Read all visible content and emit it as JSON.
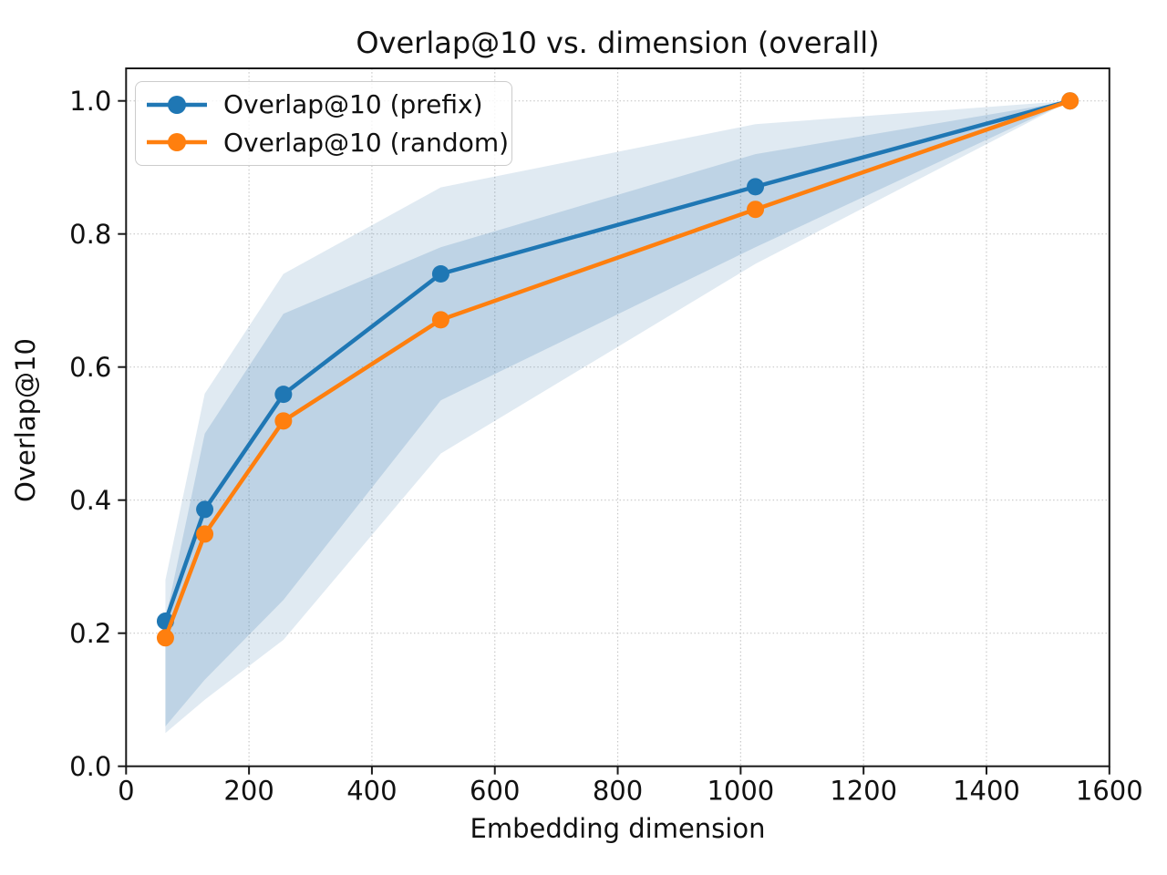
{
  "figure": {
    "background": "#ffffff"
  },
  "chart_data": {
    "type": "line",
    "title": "Overlap@10 vs. dimension (overall)",
    "xlabel": "Embedding dimension",
    "ylabel": "Overlap@10",
    "xlim": [
      0,
      1600
    ],
    "ylim": [
      0,
      1.05
    ],
    "grid": true,
    "grid_style": "dotted",
    "legend_position": "upper left",
    "x": [
      64,
      128,
      256,
      512,
      1024,
      1536
    ],
    "xticks": [
      0,
      200,
      400,
      600,
      800,
      1000,
      1200,
      1400,
      1600
    ],
    "x_tick_labels": [
      "0",
      "200",
      "400",
      "600",
      "800",
      "1000",
      "1200",
      "1400",
      "1600"
    ],
    "yticks": [
      0,
      0.2,
      0.4,
      0.6,
      0.8,
      1.0
    ],
    "y_tick_labels": [
      "0.0",
      "0.2",
      "0.4",
      "0.6",
      "0.8",
      "1.0"
    ],
    "series": [
      {
        "name": "Overlap@10 (prefix)",
        "color": "#1f77b4",
        "marker": "circle",
        "values": [
          0.218,
          0.386,
          0.559,
          0.74,
          0.871,
          1.0
        ]
      },
      {
        "name": "Overlap@10 (random)",
        "color": "#ff7f0e",
        "marker": "circle",
        "values": [
          0.193,
          0.349,
          0.519,
          0.671,
          0.837,
          1.0
        ]
      }
    ],
    "bands": [
      {
        "name": "outer-confidence-band",
        "color": "#4682b4",
        "opacity": 0.17,
        "lo": [
          0.05,
          0.1,
          0.19,
          0.47,
          0.755,
          1.0
        ],
        "hi": [
          0.28,
          0.56,
          0.74,
          0.87,
          0.965,
          1.0
        ]
      },
      {
        "name": "inner-confidence-band",
        "color": "#4682b4",
        "opacity": 0.22,
        "lo": [
          0.06,
          0.13,
          0.25,
          0.55,
          0.78,
          1.0
        ],
        "hi": [
          0.22,
          0.5,
          0.68,
          0.78,
          0.92,
          1.0
        ]
      }
    ],
    "colors": {
      "grid": "#c8c8c8",
      "frame": "#1a1a1a",
      "text": "#111111"
    }
  }
}
